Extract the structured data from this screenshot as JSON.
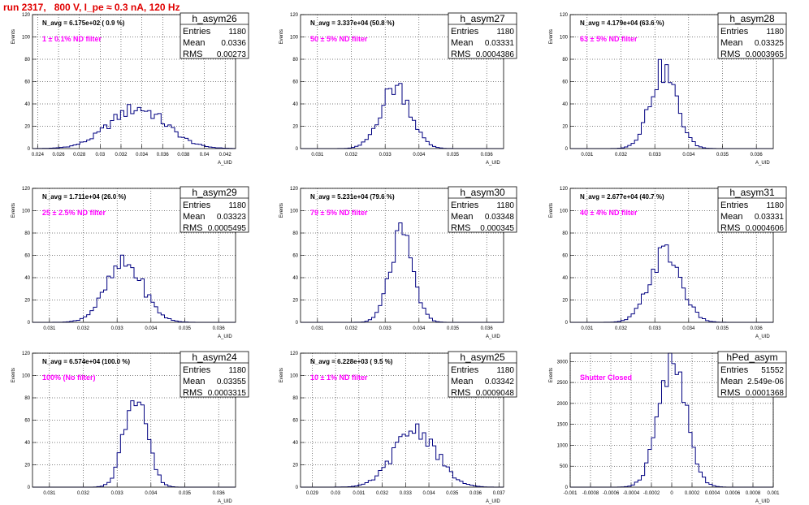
{
  "run_title": "run 2317,   800 V, I_pe ≈ 0.3 nA, 120 Hz",
  "colors": {
    "title": "#e00000",
    "histogram": "#000080",
    "filter_label": "#ff00ff"
  },
  "y_axis_label": "Events",
  "x_axis_label": "A_UID",
  "stat_labels": {
    "entries": "Entries",
    "mean": "Mean",
    "rms": "RMS"
  },
  "chart_data": [
    {
      "type": "histogram",
      "name": "h_asym26",
      "navg": "N_avg = 6.175e+02 ( 0.9 %)",
      "filter": "1 ± 0.1% ND filter",
      "entries": "1180",
      "mean": "0.0336",
      "rms": "0.00273",
      "xlim": [
        0.0235,
        0.043
      ],
      "ylim": [
        0,
        120
      ],
      "xticks": [
        "0.024",
        "0.026",
        "0.028",
        "0.03",
        "0.032",
        "0.034",
        "0.036",
        "0.038",
        "0.04",
        "0.042"
      ],
      "xtick_values": [
        0.024,
        0.026,
        0.028,
        0.03,
        0.032,
        0.034,
        0.036,
        0.038,
        0.04,
        0.042
      ],
      "yticks": [
        "0",
        "20",
        "40",
        "60",
        "80",
        "100",
        "120"
      ],
      "dist": {
        "mean": 0.0336,
        "rms": 0.00273,
        "peak": 36
      }
    },
    {
      "type": "histogram",
      "name": "h_asym27",
      "navg": "N_avg = 3.337e+04 (50.8 %)",
      "filter": "50 ± 5% ND filter",
      "entries": "1180",
      "mean": "0.03331",
      "rms": "0.0004386",
      "xlim": [
        0.0305,
        0.0365
      ],
      "ylim": [
        0,
        120
      ],
      "xticks": [
        "0.031",
        "0.032",
        "0.033",
        "0.034",
        "0.035",
        "0.036"
      ],
      "xtick_values": [
        0.031,
        0.032,
        0.033,
        0.034,
        0.035,
        0.036
      ],
      "yticks": [
        "0",
        "20",
        "40",
        "60",
        "80",
        "100",
        "120"
      ],
      "dist": {
        "mean": 0.03331,
        "rms": 0.0004386,
        "peak": 56
      }
    },
    {
      "type": "histogram",
      "name": "h_asym28",
      "navg": "N_avg = 4.179e+04 (63.6 %)",
      "filter": "63 ± 5% ND filter",
      "entries": "1180",
      "mean": "0.03325",
      "rms": "0.0003965",
      "xlim": [
        0.0305,
        0.0365
      ],
      "ylim": [
        0,
        120
      ],
      "xticks": [
        "0.031",
        "0.032",
        "0.033",
        "0.034",
        "0.035",
        "0.036"
      ],
      "xtick_values": [
        0.031,
        0.032,
        0.033,
        0.034,
        0.035,
        0.036
      ],
      "yticks": [
        "0",
        "20",
        "40",
        "60",
        "80",
        "100",
        "120"
      ],
      "dist": {
        "mean": 0.03325,
        "rms": 0.0003965,
        "peak": 70
      }
    },
    {
      "type": "histogram",
      "name": "h_asym29",
      "navg": "N_avg = 1.711e+04 (26.0 %)",
      "filter": "25 ± 2.5% ND filter",
      "entries": "1180",
      "mean": "0.03323",
      "rms": "0.0005495",
      "xlim": [
        0.0305,
        0.0365
      ],
      "ylim": [
        0,
        120
      ],
      "xticks": [
        "0.031",
        "0.032",
        "0.033",
        "0.034",
        "0.035",
        "0.036"
      ],
      "xtick_values": [
        0.031,
        0.032,
        0.033,
        0.034,
        0.035,
        0.036
      ],
      "yticks": [
        "0",
        "20",
        "40",
        "60",
        "80",
        "100",
        "120"
      ],
      "dist": {
        "mean": 0.03323,
        "rms": 0.0005495,
        "peak": 52
      }
    },
    {
      "type": "histogram",
      "name": "h_asym30",
      "navg": "N_avg = 5.231e+04 (79.6 %)",
      "filter": "79 ± 5% ND filter",
      "entries": "1180",
      "mean": "0.03348",
      "rms": "0.000345",
      "xlim": [
        0.0305,
        0.0365
      ],
      "ylim": [
        0,
        120
      ],
      "xticks": [
        "0.031",
        "0.032",
        "0.033",
        "0.034",
        "0.035",
        "0.036"
      ],
      "xtick_values": [
        0.031,
        0.032,
        0.033,
        0.034,
        0.035,
        0.036
      ],
      "yticks": [
        "0",
        "20",
        "40",
        "60",
        "80",
        "100",
        "120"
      ],
      "dist": {
        "mean": 0.03348,
        "rms": 0.000345,
        "peak": 76
      }
    },
    {
      "type": "histogram",
      "name": "h_asym31",
      "navg": "N_avg = 2.677e+04 (40.7 %)",
      "filter": "40 ± 4% ND filter",
      "entries": "1180",
      "mean": "0.03331",
      "rms": "0.0004606",
      "xlim": [
        0.0305,
        0.0365
      ],
      "ylim": [
        0,
        120
      ],
      "xticks": [
        "0.031",
        "0.032",
        "0.033",
        "0.034",
        "0.035",
        "0.036"
      ],
      "xtick_values": [
        0.031,
        0.032,
        0.033,
        0.034,
        0.035,
        0.036
      ],
      "yticks": [
        "0",
        "20",
        "40",
        "60",
        "80",
        "100",
        "120"
      ],
      "dist": {
        "mean": 0.03331,
        "rms": 0.0004606,
        "peak": 62
      }
    },
    {
      "type": "histogram",
      "name": "h_asym24",
      "navg": "N_avg = 6.574e+04 (100.0 %)",
      "filter": "100% (No filter)",
      "entries": "1180",
      "mean": "0.03355",
      "rms": "0.0003315",
      "xlim": [
        0.0305,
        0.0365
      ],
      "ylim": [
        0,
        120
      ],
      "xticks": [
        "0.031",
        "0.032",
        "0.033",
        "0.034",
        "0.035",
        "0.036"
      ],
      "xtick_values": [
        0.031,
        0.032,
        0.033,
        0.034,
        0.035,
        0.036
      ],
      "yticks": [
        "0",
        "20",
        "40",
        "60",
        "80",
        "100",
        "120"
      ],
      "dist": {
        "mean": 0.03355,
        "rms": 0.0003315,
        "peak": 88
      }
    },
    {
      "type": "histogram",
      "name": "h_asym25",
      "navg": "N_avg = 6.228e+03 ( 9.5 %)",
      "filter": "10 ± 1% ND filter",
      "entries": "1180",
      "mean": "0.03342",
      "rms": "0.0009048",
      "xlim": [
        0.0285,
        0.0372
      ],
      "ylim": [
        0,
        120
      ],
      "xticks": [
        "0.029",
        "0.03",
        "0.031",
        "0.032",
        "0.033",
        "0.034",
        "0.035",
        "0.036",
        "0.037"
      ],
      "xtick_values": [
        0.029,
        0.03,
        0.031,
        0.032,
        0.033,
        0.034,
        0.035,
        0.036,
        0.037
      ],
      "yticks": [
        "0",
        "20",
        "40",
        "60",
        "80",
        "100",
        "120"
      ],
      "dist": {
        "mean": 0.03342,
        "rms": 0.0009048,
        "peak": 52
      }
    },
    {
      "type": "histogram",
      "name": "hPed_asym",
      "navg": "",
      "filter": "Shutter Closed",
      "entries": "51552",
      "mean": "2.549e-06",
      "rms": "0.0001368",
      "xlim": [
        -0.001,
        0.001
      ],
      "ylim": [
        0,
        3200
      ],
      "xticks": [
        "-0.001",
        "-0.0008",
        "-0.0006",
        "-0.0004",
        "-0.0002",
        "0",
        "0.0002",
        "0.0004",
        "0.0006",
        "0.0008",
        "0.001"
      ],
      "xtick_values": [
        -0.001,
        -0.0008,
        -0.0006,
        -0.0004,
        -0.0002,
        0,
        0.0002,
        0.0004,
        0.0006,
        0.0008,
        0.001
      ],
      "yticks": [
        "0",
        "500",
        "1000",
        "1500",
        "2000",
        "2500",
        "3000"
      ],
      "ytick_values": [
        0,
        500,
        1000,
        1500,
        2000,
        2500,
        3000
      ],
      "dist": {
        "mean": 2.5e-06,
        "rms": 0.0001368,
        "peak": 3000
      }
    }
  ]
}
